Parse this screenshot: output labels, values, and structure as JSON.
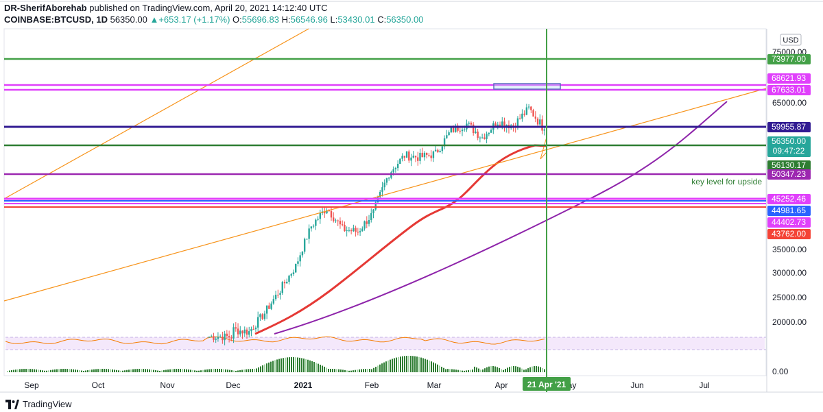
{
  "header": {
    "author": "DR-SherifAborehab",
    "published": "published on TradingView.com, April 20, 2021 14:12:40 UTC",
    "symbol": "COINBASE:BTCUSD, 1D",
    "price": "56350.00",
    "change": "+653.17 (+1.17%)",
    "open_label": "O:",
    "open": "55696.83",
    "high_label": "H:",
    "high": "56546.96",
    "low_label": "L:",
    "low": "53430.01",
    "close_label": "C:",
    "close": "56350.00"
  },
  "footer": {
    "brand": "TradingView"
  },
  "colors": {
    "up": "#26a69a",
    "down": "#ef5350",
    "ma": "#e53935",
    "orange": "#f7931a",
    "purple": "#9c27b0",
    "green": "#43a047",
    "magenta": "#e040fb",
    "navy": "#311b92",
    "blue": "#2962ff",
    "red": "#f44336"
  },
  "chart_data": {
    "type": "candlestick",
    "symbol": "COINBASE:BTCUSD",
    "interval": "1D",
    "currency_label": "USD",
    "y_ticks": [
      "75000.00",
      "65000.00",
      "35000.00",
      "30000.00",
      "25000.00",
      "20000.00"
    ],
    "x_ticks": [
      "Sep",
      "Oct",
      "Nov",
      "Dec",
      "2021",
      "Feb",
      "Mar",
      "Apr",
      "May",
      "Jun",
      "Jul"
    ],
    "cursor_date": "21 Apr '21",
    "countdown": "09:47:22",
    "indicator_zero_label": "0.00",
    "annotation": "key level for upside",
    "price_levels": [
      {
        "value": 73977.0,
        "label": "73977.00",
        "color": "#43a047"
      },
      {
        "value": 68621.93,
        "label": "68621.93",
        "color": "#e040fb"
      },
      {
        "value": 67633.01,
        "label": "67633.01",
        "color": "#e040fb"
      },
      {
        "value": 59955.87,
        "label": "59955.87",
        "color": "#311b92"
      },
      {
        "value": 56350.0,
        "label": "56350.00",
        "color": "#26a69a"
      },
      {
        "value": 56130.17,
        "label": "56130.17",
        "color": "#2e7d32"
      },
      {
        "value": 50347.23,
        "label": "50347.23",
        "color": "#9c27b0"
      },
      {
        "value": 45252.46,
        "label": "45252.46",
        "color": "#e040fb"
      },
      {
        "value": 44981.65,
        "label": "44981.65",
        "color": "#2962ff"
      },
      {
        "value": 44402.73,
        "label": "44402.73",
        "color": "#e040fb"
      },
      {
        "value": 43762.0,
        "label": "43762.00",
        "color": "#f44336"
      }
    ],
    "candles_weekly_close": [
      [
        "2020-12-01",
        19200
      ],
      [
        "2020-12-08",
        19000
      ],
      [
        "2020-12-15",
        21000
      ],
      [
        "2020-12-22",
        23800
      ],
      [
        "2020-12-29",
        27000
      ],
      [
        "2021-01-05",
        33500
      ],
      [
        "2021-01-12",
        37000
      ],
      [
        "2021-01-19",
        33000
      ],
      [
        "2021-01-26",
        32500
      ],
      [
        "2021-02-02",
        36000
      ],
      [
        "2021-02-09",
        44500
      ],
      [
        "2021-02-16",
        49000
      ],
      [
        "2021-02-23",
        48500
      ],
      [
        "2021-03-02",
        49500
      ],
      [
        "2021-03-09",
        56000
      ],
      [
        "2021-03-16",
        58000
      ],
      [
        "2021-03-23",
        54000
      ],
      [
        "2021-03-30",
        58800
      ],
      [
        "2021-04-06",
        57500
      ],
      [
        "2021-04-13",
        63000
      ],
      [
        "2021-04-20",
        56350
      ]
    ]
  }
}
